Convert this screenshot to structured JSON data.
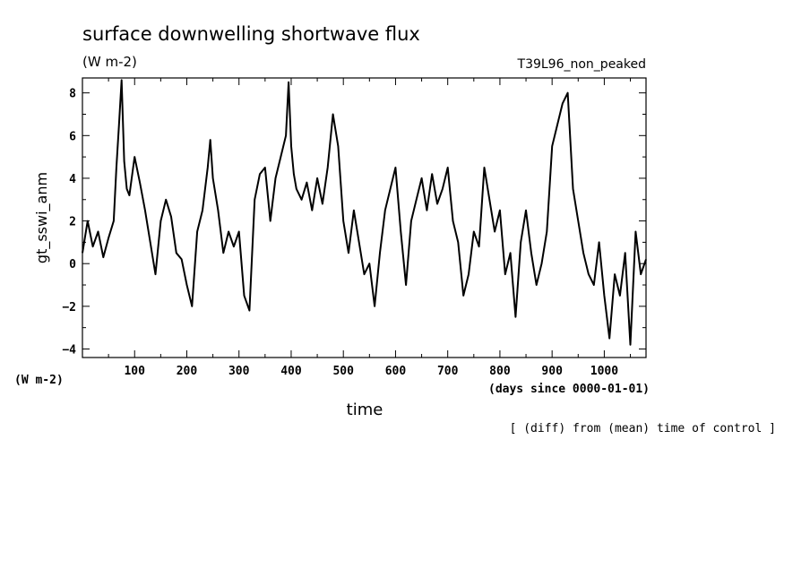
{
  "chart_data": {
    "type": "line",
    "title": "surface downwelling shortwave flux",
    "subtitle_units": "(W m-2)",
    "run_label": "T39L96_non_peaked",
    "ylabel": "gt_sswi_anm",
    "ylabel_units": "(W m-2)",
    "xlabel": "time",
    "xlabel_units": "(days since 0000-01-01)",
    "footnote": "[ (diff) from (mean) time of control ]",
    "xlim": [
      0,
      1080
    ],
    "ylim": [
      -4.4,
      8.7
    ],
    "x_ticks": [
      100,
      200,
      300,
      400,
      500,
      600,
      700,
      800,
      900,
      1000
    ],
    "y_ticks": [
      -4,
      -2,
      0,
      2,
      4,
      6,
      8
    ],
    "grid": false,
    "series": [
      {
        "x": [
          0,
          10,
          20,
          30,
          40,
          50,
          60,
          65,
          70,
          75,
          80,
          85,
          90,
          100,
          110,
          120,
          130,
          140,
          150,
          160,
          170,
          180,
          190,
          200,
          210,
          220,
          230,
          240,
          245,
          250,
          260,
          270,
          280,
          290,
          300,
          310,
          320,
          330,
          340,
          350,
          360,
          370,
          380,
          390,
          395,
          400,
          405,
          410,
          420,
          430,
          440,
          450,
          460,
          470,
          480,
          490,
          500,
          510,
          520,
          530,
          540,
          550,
          560,
          570,
          580,
          590,
          600,
          610,
          620,
          630,
          640,
          650,
          660,
          670,
          680,
          690,
          700,
          710,
          720,
          730,
          740,
          750,
          760,
          770,
          780,
          790,
          800,
          810,
          820,
          830,
          840,
          850,
          860,
          870,
          880,
          890,
          900,
          910,
          920,
          930,
          940,
          950,
          960,
          970,
          980,
          990,
          1000,
          1010,
          1020,
          1030,
          1040,
          1050,
          1060,
          1070,
          1080
        ],
        "y": [
          0.5,
          2.0,
          0.8,
          1.5,
          0.3,
          1.2,
          2.0,
          4.5,
          6.5,
          8.6,
          4.8,
          3.5,
          3.2,
          5.0,
          3.8,
          2.5,
          1.0,
          -0.5,
          2.0,
          3.0,
          2.2,
          0.5,
          0.2,
          -1.0,
          -2.0,
          1.5,
          2.5,
          4.5,
          5.8,
          4.0,
          2.5,
          0.5,
          1.5,
          0.8,
          1.5,
          -1.5,
          -2.2,
          3.0,
          4.2,
          4.5,
          2.0,
          4.0,
          5.0,
          6.0,
          8.5,
          5.5,
          4.2,
          3.5,
          3.0,
          3.8,
          2.5,
          4.0,
          2.8,
          4.5,
          7.0,
          5.5,
          2.0,
          0.5,
          2.5,
          1.0,
          -0.5,
          0.0,
          -2.0,
          0.5,
          2.5,
          3.5,
          4.5,
          1.5,
          -1.0,
          2.0,
          3.0,
          4.0,
          2.5,
          4.2,
          2.8,
          3.5,
          4.5,
          2.0,
          1.0,
          -1.5,
          -0.5,
          1.5,
          0.8,
          4.5,
          3.0,
          1.5,
          2.5,
          -0.5,
          0.5,
          -2.5,
          1.0,
          2.5,
          0.5,
          -1.0,
          0.0,
          1.5,
          5.5,
          6.5,
          7.5,
          8.0,
          3.5,
          2.0,
          0.5,
          -0.5,
          -1.0,
          1.0,
          -1.5,
          -3.5,
          -0.5,
          -1.5,
          0.5,
          -3.8,
          1.5,
          -0.5,
          0.2
        ]
      }
    ]
  }
}
